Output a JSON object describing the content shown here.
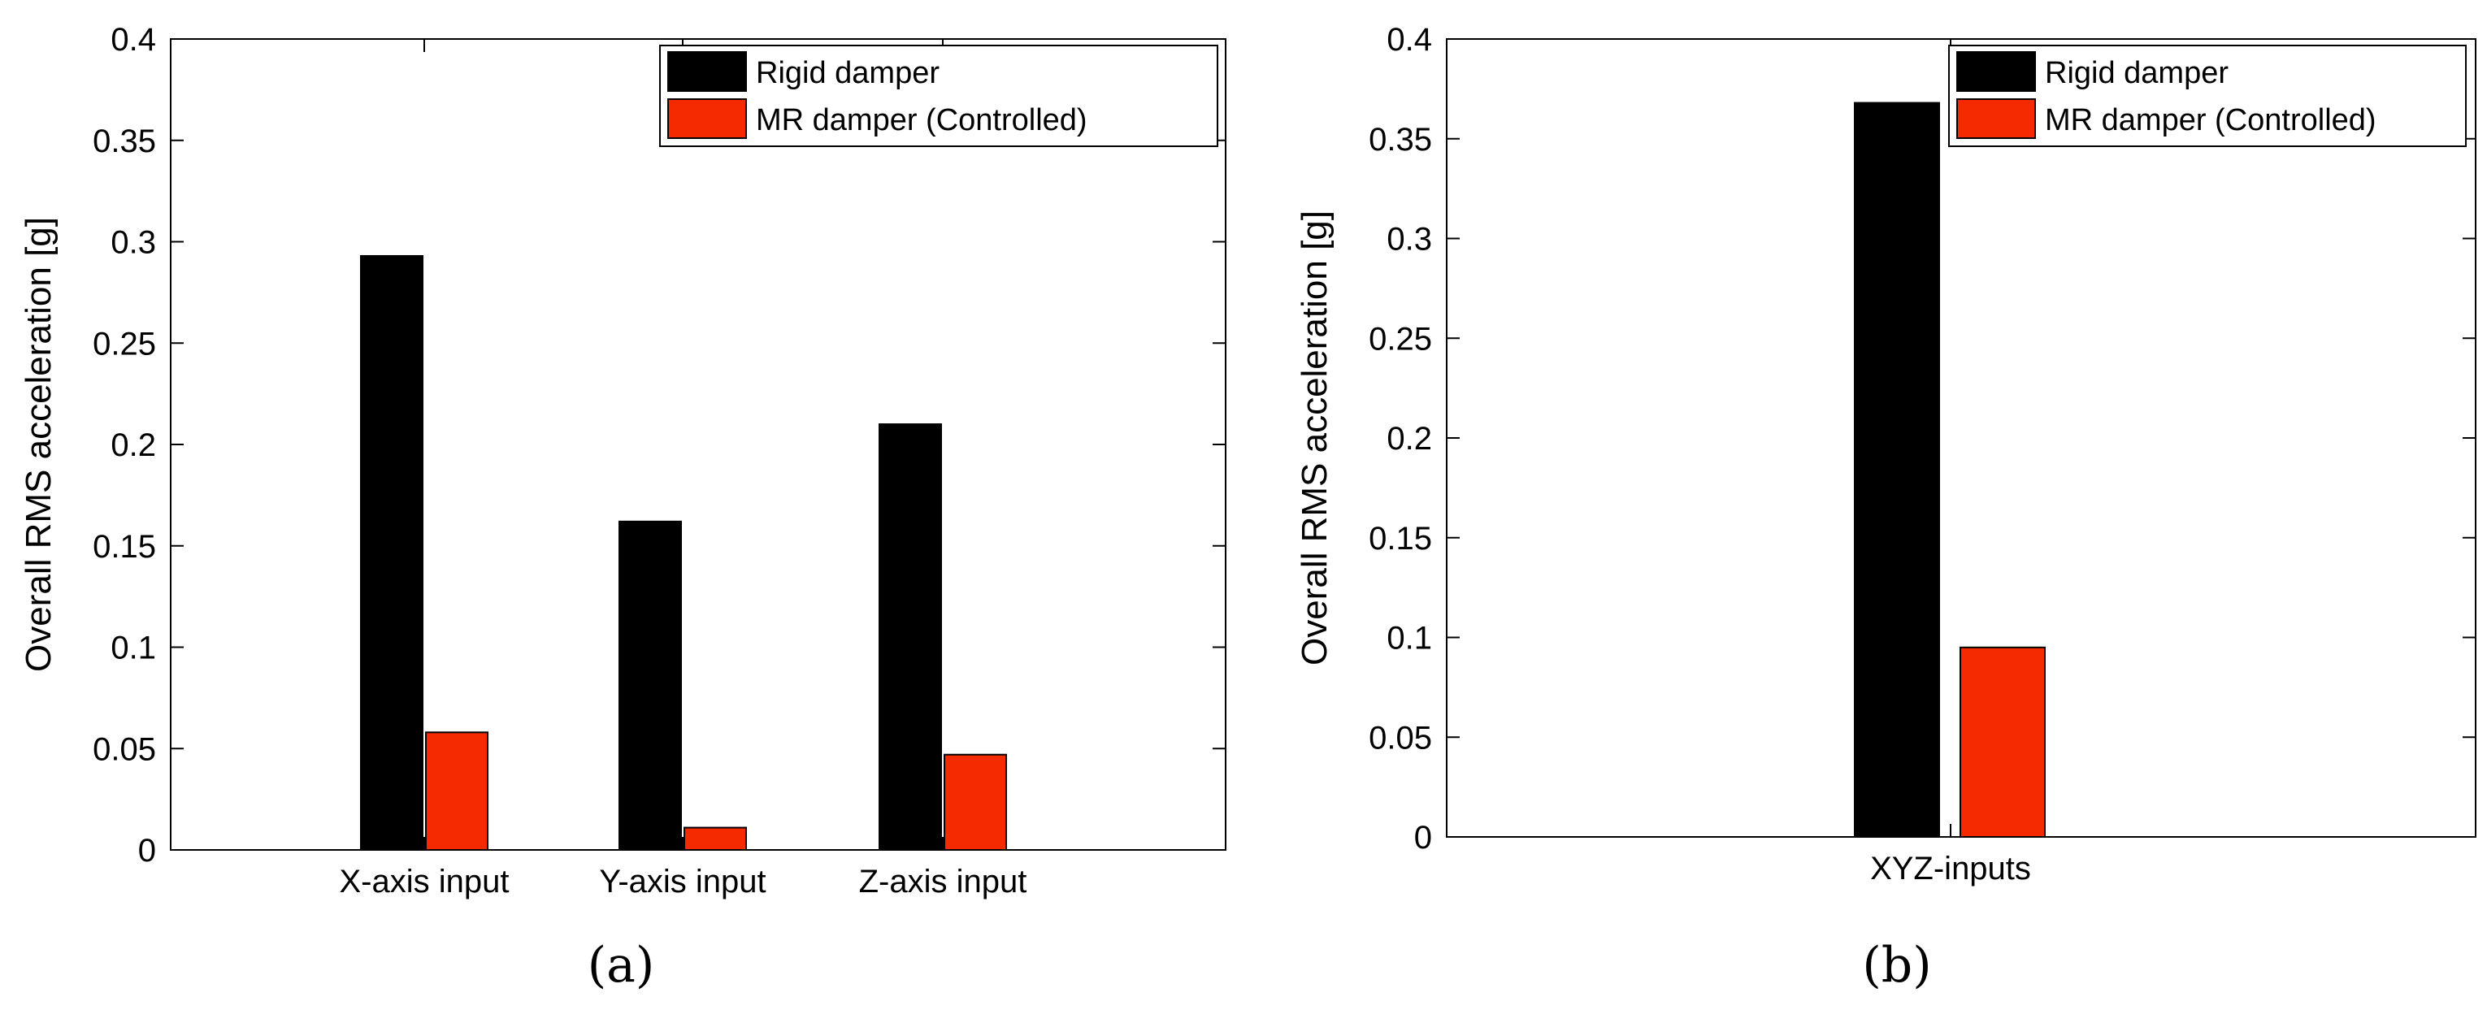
{
  "chart_data": [
    {
      "type": "bar",
      "panel_label": "(a)",
      "categories": [
        "X-axis input",
        "Y-axis input",
        "Z-axis input"
      ],
      "series": [
        {
          "name": "Rigid damper",
          "values": [
            0.293,
            0.162,
            0.21
          ]
        },
        {
          "name": "MR damper (Controlled)",
          "values": [
            0.058,
            0.011,
            0.047
          ]
        }
      ],
      "ylabel": "Overall RMS acceleration [g]",
      "ylim": [
        0,
        0.4
      ],
      "yticks": [
        "0",
        "0.05",
        "0.1",
        "0.15",
        "0.2",
        "0.25",
        "0.3",
        "0.35",
        "0.4"
      ],
      "legend_position": "top-right",
      "grid": false
    },
    {
      "type": "bar",
      "panel_label": "(b)",
      "categories": [
        "XYZ-inputs"
      ],
      "series": [
        {
          "name": "Rigid damper",
          "values": [
            0.368
          ]
        },
        {
          "name": "MR damper (Controlled)",
          "values": [
            0.095
          ]
        }
      ],
      "ylabel": "Overall RMS acceleration [g]",
      "ylim": [
        0,
        0.4
      ],
      "yticks": [
        "0",
        "0.05",
        "0.1",
        "0.15",
        "0.2",
        "0.25",
        "0.3",
        "0.35",
        "0.4"
      ],
      "legend_position": "top-right",
      "grid": false
    }
  ],
  "colors": {
    "rigid": "#000000",
    "mr": "#f62a00"
  }
}
